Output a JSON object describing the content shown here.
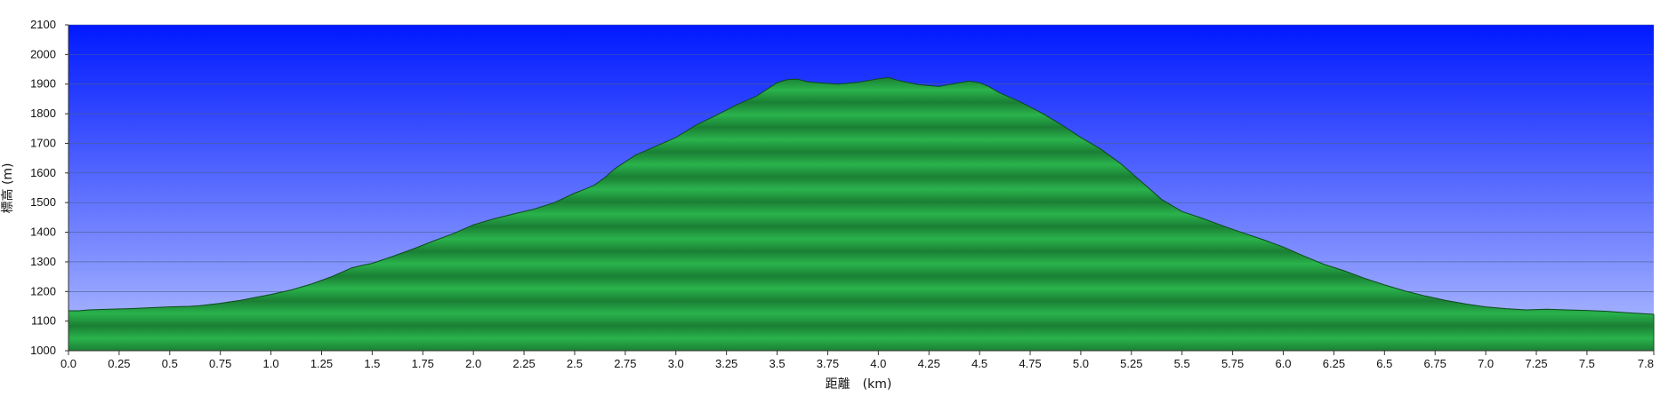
{
  "chart_data": {
    "type": "area",
    "xlabel": "距離　(km)",
    "ylabel": "標高 (m)",
    "xlim": [
      0,
      7.83
    ],
    "ylim": [
      1000,
      2100
    ],
    "x_ticks": [
      "0.0",
      "0.25",
      "0.5",
      "0.75",
      "1.0",
      "1.25",
      "1.5",
      "1.75",
      "2.0",
      "2.25",
      "2.5",
      "2.75",
      "3.0",
      "3.25",
      "3.5",
      "3.75",
      "4.0",
      "4.25",
      "4.5",
      "4.75",
      "5.0",
      "5.25",
      "5.5",
      "5.75",
      "6.0",
      "6.25",
      "6.5",
      "6.75",
      "7.0",
      "7.25",
      "7.5",
      "7.8"
    ],
    "y_ticks": [
      "1000",
      "1100",
      "1200",
      "1300",
      "1400",
      "1500",
      "1600",
      "1700",
      "1800",
      "1900",
      "2000",
      "2100"
    ],
    "grid": true,
    "colors": {
      "sky_top": "#0019ff",
      "sky_bottom": "#b4c0ff",
      "terrain": "#23a545",
      "terrain_edge": "#0d4a1c",
      "gridline": "#4a5f95"
    },
    "series": [
      {
        "x": [
          0.0,
          0.05,
          0.1,
          0.2,
          0.3,
          0.4,
          0.5,
          0.6,
          0.65,
          0.75,
          0.85,
          1.0,
          1.1,
          1.2,
          1.3,
          1.4,
          1.45,
          1.5,
          1.6,
          1.7,
          1.8,
          1.9,
          2.0,
          2.1,
          2.2,
          2.3,
          2.4,
          2.5,
          2.55,
          2.6,
          2.65,
          2.7,
          2.8,
          2.9,
          3.0,
          3.1,
          3.2,
          3.3,
          3.4,
          3.5,
          3.55,
          3.6,
          3.65,
          3.7,
          3.8,
          3.9,
          4.0,
          4.05,
          4.1,
          4.2,
          4.3,
          4.4,
          4.45,
          4.5,
          4.55,
          4.6,
          4.7,
          4.8,
          4.9,
          5.0,
          5.1,
          5.2,
          5.3,
          5.4,
          5.5,
          5.6,
          5.7,
          5.8,
          5.9,
          6.0,
          6.1,
          6.2,
          6.3,
          6.4,
          6.5,
          6.6,
          6.7,
          6.8,
          6.9,
          7.0,
          7.1,
          7.2,
          7.3,
          7.4,
          7.5,
          7.6,
          7.7,
          7.83
        ],
        "y": [
          1135,
          1135,
          1138,
          1140,
          1142,
          1145,
          1148,
          1150,
          1152,
          1160,
          1170,
          1190,
          1205,
          1225,
          1250,
          1280,
          1288,
          1295,
          1318,
          1343,
          1370,
          1395,
          1425,
          1445,
          1462,
          1478,
          1500,
          1532,
          1545,
          1560,
          1585,
          1615,
          1660,
          1690,
          1720,
          1762,
          1795,
          1830,
          1860,
          1905,
          1915,
          1917,
          1908,
          1905,
          1900,
          1906,
          1918,
          1922,
          1912,
          1898,
          1892,
          1905,
          1910,
          1905,
          1890,
          1870,
          1840,
          1805,
          1765,
          1720,
          1680,
          1630,
          1570,
          1510,
          1470,
          1447,
          1422,
          1398,
          1375,
          1350,
          1320,
          1292,
          1270,
          1245,
          1222,
          1202,
          1185,
          1170,
          1158,
          1148,
          1142,
          1138,
          1140,
          1138,
          1136,
          1133,
          1128,
          1123
        ]
      }
    ]
  }
}
